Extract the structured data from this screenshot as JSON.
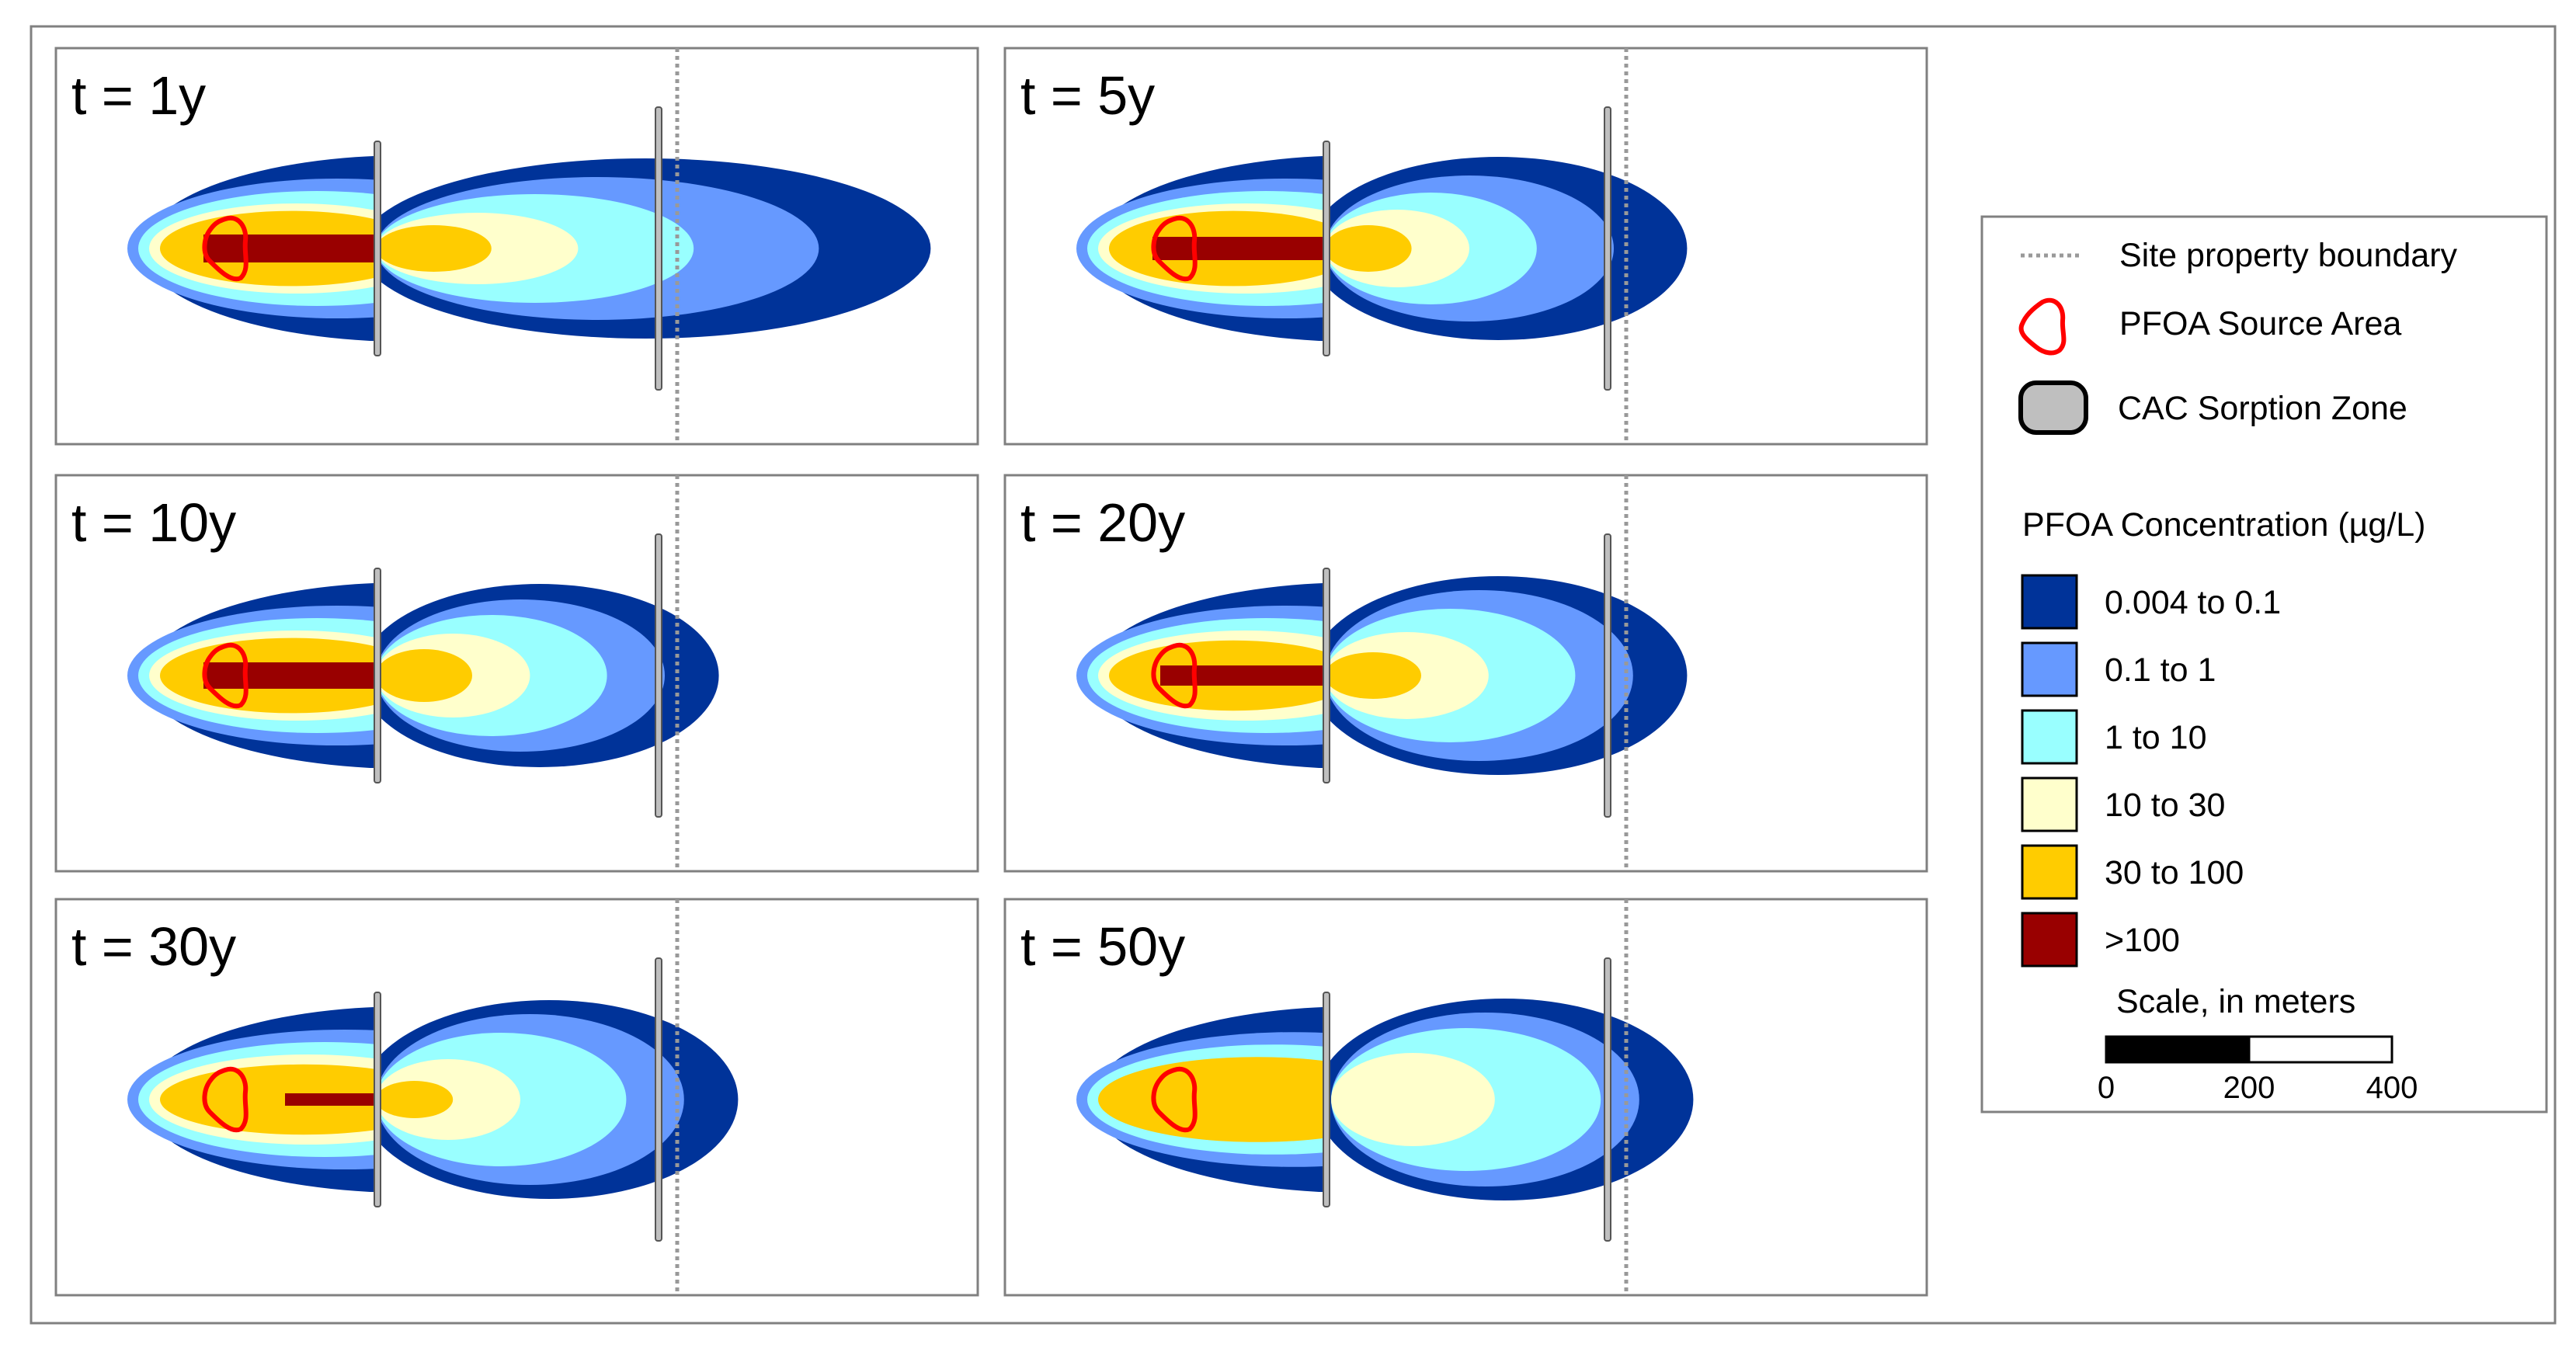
{
  "panels": [
    {
      "label": "t = 1y",
      "sorb_right": false
    },
    {
      "label": "t = 5y",
      "sorb_right": false
    },
    {
      "label": "t = 10y",
      "sorb_right": false
    },
    {
      "label": "t = 20y",
      "sorb_right": false
    },
    {
      "label": "t = 30y",
      "sorb_right": false
    },
    {
      "label": "t = 50y",
      "sorb_right": false
    }
  ],
  "legend": {
    "boundary_label": "Site property boundary",
    "source_label": "PFOA Source Area",
    "cac_label": "CAC Sorption Zone",
    "concentration_title": "PFOA Concentration (µg/L)",
    "classes": [
      {
        "label": "0.004 to 0.1",
        "color": "#003399"
      },
      {
        "label": "0.1 to 1",
        "color": "#6699ff"
      },
      {
        "label": "1 to 10",
        "color": "#99ffff"
      },
      {
        "label": "10 to 30",
        "color": "#ffffcc"
      },
      {
        "label": "30 to 100",
        "color": "#ffcc00"
      },
      {
        "label": ">100",
        "color": "#990000"
      }
    ],
    "scale_title": "Scale, in meters",
    "scale_ticks": [
      "0",
      "200",
      "400"
    ]
  },
  "colors": {
    "source_outline": "#ff0000",
    "cac_fill": "#bfbfbf",
    "boundary": "#999999"
  }
}
